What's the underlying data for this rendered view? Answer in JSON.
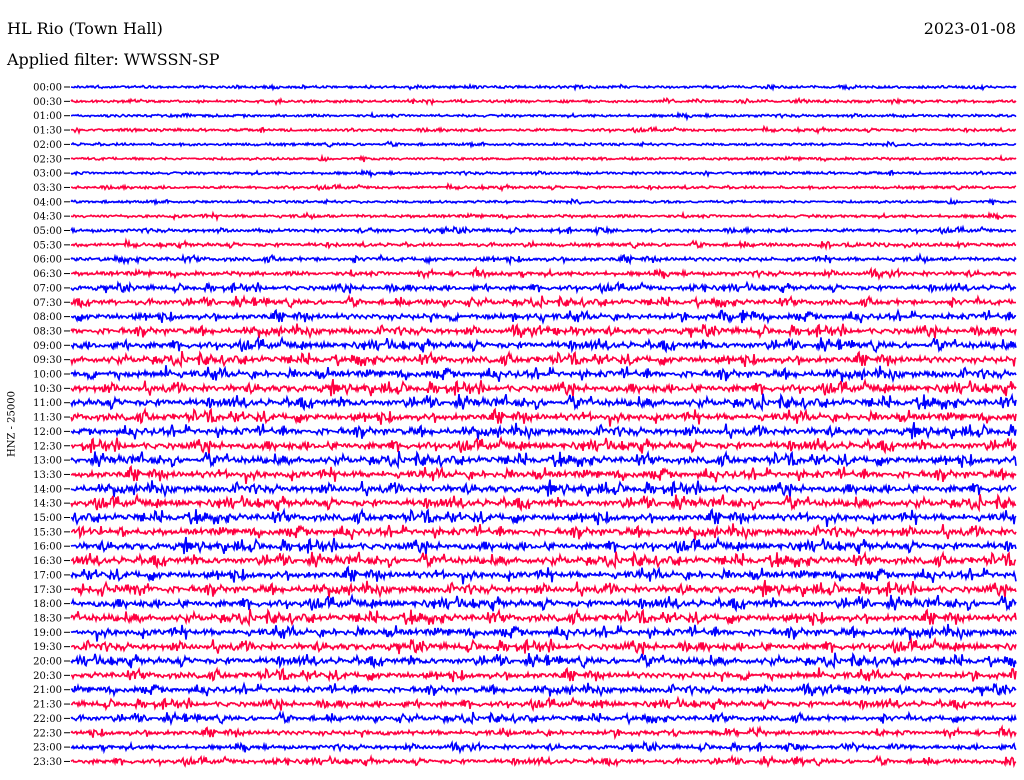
{
  "header": {
    "station": "HL Rio (Town Hall)",
    "date": "2023-01-08",
    "filter": "Applied filter: WWSSN-SP"
  },
  "chart_data": {
    "type": "line",
    "title": "HL Rio (Town Hall)",
    "subtitle": "Applied filter: WWSSN-SP",
    "ylabel": "HNZ - 25000",
    "xlabel": "",
    "grid": false,
    "colors": {
      "even_rows": "#0000ff",
      "odd_rows": "#ff0040"
    },
    "rows": [
      {
        "label": "00:00",
        "level": 1
      },
      {
        "label": "00:30",
        "level": 1
      },
      {
        "label": "01:00",
        "level": 1
      },
      {
        "label": "01:30",
        "level": 1
      },
      {
        "label": "02:00",
        "level": 1
      },
      {
        "label": "02:30",
        "level": 1
      },
      {
        "label": "03:00",
        "level": 1
      },
      {
        "label": "03:30",
        "level": 1
      },
      {
        "label": "04:00",
        "level": 1
      },
      {
        "label": "04:30",
        "level": 1.2
      },
      {
        "label": "05:00",
        "level": 1.4
      },
      {
        "label": "05:30",
        "level": 1.5
      },
      {
        "label": "06:00",
        "level": 1.7
      },
      {
        "label": "06:30",
        "level": 2
      },
      {
        "label": "07:00",
        "level": 2.2
      },
      {
        "label": "07:30",
        "level": 2.5
      },
      {
        "label": "08:00",
        "level": 2.8
      },
      {
        "label": "08:30",
        "level": 3
      },
      {
        "label": "09:00",
        "level": 3.2
      },
      {
        "label": "09:30",
        "level": 3.3
      },
      {
        "label": "10:00",
        "level": 3.4
      },
      {
        "label": "10:30",
        "level": 3.5
      },
      {
        "label": "11:00",
        "level": 3.5
      },
      {
        "label": "11:30",
        "level": 3.5
      },
      {
        "label": "12:00",
        "level": 3.5
      },
      {
        "label": "12:30",
        "level": 3.5
      },
      {
        "label": "13:00",
        "level": 3.5
      },
      {
        "label": "13:30",
        "level": 3.5
      },
      {
        "label": "14:00",
        "level": 3.5
      },
      {
        "label": "14:30",
        "level": 3.5
      },
      {
        "label": "15:00",
        "level": 3.5
      },
      {
        "label": "15:30",
        "level": 3.5
      },
      {
        "label": "16:00",
        "level": 3.5
      },
      {
        "label": "16:30",
        "level": 3.5
      },
      {
        "label": "17:00",
        "level": 3.5
      },
      {
        "label": "17:30",
        "level": 3.5
      },
      {
        "label": "18:00",
        "level": 3.5
      },
      {
        "label": "18:30",
        "level": 3.5
      },
      {
        "label": "19:00",
        "level": 3.4
      },
      {
        "label": "19:30",
        "level": 3.3
      },
      {
        "label": "20:00",
        "level": 3.2
      },
      {
        "label": "20:30",
        "level": 3
      },
      {
        "label": "21:00",
        "level": 2.8
      },
      {
        "label": "21:30",
        "level": 2.6
      },
      {
        "label": "22:00",
        "level": 2.4
      },
      {
        "label": "22:30",
        "level": 2.2
      },
      {
        "label": "23:00",
        "level": 2
      },
      {
        "label": "23:30",
        "level": 2
      }
    ]
  }
}
